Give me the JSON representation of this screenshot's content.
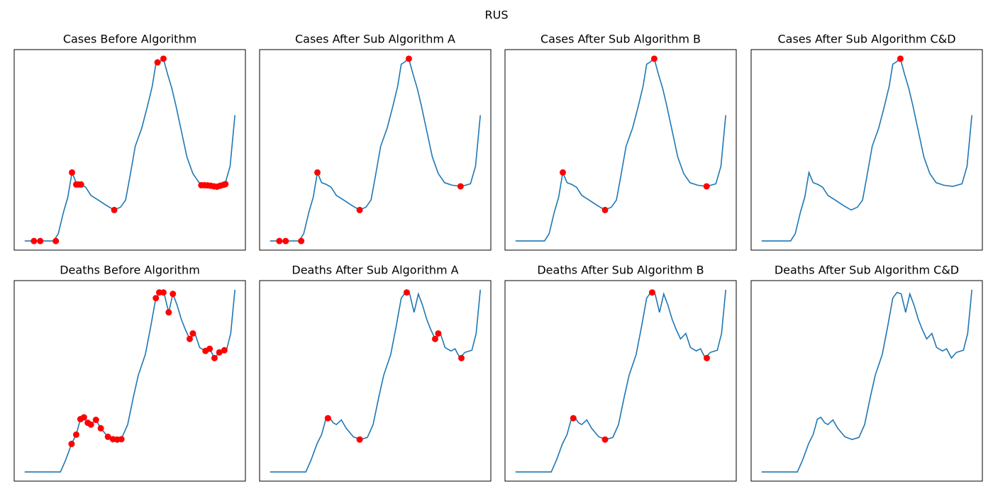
{
  "title": "RUS",
  "chart_data": [
    {
      "type": "line",
      "title": "Cases Before Algorithm",
      "xlim": [
        -5,
        105
      ],
      "ylim": [
        -5,
        105
      ],
      "color": "#1f77b4",
      "x": [
        0,
        13.8,
        16,
        18.5,
        20.5,
        22.5,
        24.5,
        26.8,
        29,
        31.5,
        35,
        39,
        42.6,
        45.6,
        48,
        50,
        52.6,
        55.7,
        58.4,
        60.7,
        62.4,
        63.8,
        66,
        68,
        70,
        72,
        74.5,
        77.2,
        80,
        83,
        86.6,
        91,
        95.3,
        97.7,
        100
      ],
      "values": [
        0,
        0,
        4,
        16,
        24,
        37.6,
        32,
        31,
        29.5,
        25,
        22.5,
        19.4,
        17,
        18.6,
        22.5,
        35,
        52,
        62,
        74,
        85,
        97,
        98,
        100,
        91.5,
        83.7,
        74,
        60.5,
        46,
        37,
        32,
        30.6,
        30,
        31.4,
        41,
        69
      ],
      "markers": {
        "color": "#ff0000",
        "x": [
          4.4,
          7.4,
          14.8,
          22.5,
          24.5,
          25.5,
          26.8,
          42.6,
          63.2,
          66,
          84,
          85.5,
          87,
          88.5,
          90,
          91.5,
          93,
          94.5,
          95.5
        ],
        "values": [
          0,
          0,
          0,
          37.6,
          31,
          31,
          31,
          17,
          98,
          100,
          30.6,
          30.6,
          30.5,
          30.3,
          30,
          29.8,
          30.3,
          30.8,
          31.2
        ]
      }
    },
    {
      "type": "line",
      "title": "Cases After Sub Algorithm A",
      "xlim": [
        -5,
        105
      ],
      "ylim": [
        -5,
        105
      ],
      "color": "#1f77b4",
      "x": [
        0,
        13.8,
        16,
        18.5,
        20.5,
        22.5,
        24.5,
        26.8,
        29,
        31.5,
        35,
        39,
        42.6,
        45.6,
        48,
        50,
        52.6,
        55.7,
        58.4,
        60.7,
        62.4,
        63.8,
        66,
        68,
        70,
        72,
        74.5,
        77.2,
        80,
        83,
        86.6,
        91,
        95.3,
        97.7,
        100
      ],
      "values": [
        0,
        0,
        4,
        16,
        24,
        37.6,
        32,
        31,
        29.5,
        25,
        22.5,
        19.4,
        17,
        18.6,
        22.5,
        35,
        52,
        62,
        74,
        85,
        97,
        98,
        100,
        91.5,
        83.7,
        74,
        60.5,
        46,
        37,
        32,
        30.6,
        30,
        31.4,
        41,
        69
      ],
      "markers": {
        "color": "#ff0000",
        "x": [
          4.4,
          7.4,
          14.8,
          22.5,
          42.6,
          66,
          90.6
        ],
        "values": [
          0,
          0,
          0,
          37.6,
          17,
          100,
          30
        ]
      }
    },
    {
      "type": "line",
      "title": "Cases After Sub Algorithm B",
      "xlim": [
        -5,
        105
      ],
      "ylim": [
        -5,
        105
      ],
      "color": "#1f77b4",
      "x": [
        0,
        13.8,
        16,
        18.5,
        20.5,
        22.5,
        24.5,
        26.8,
        29,
        31.5,
        35,
        39,
        42.6,
        45.6,
        48,
        50,
        52.6,
        55.7,
        58.4,
        60.7,
        62.4,
        63.8,
        66,
        68,
        70,
        72,
        74.5,
        77.2,
        80,
        83,
        86.6,
        91,
        95.3,
        97.7,
        100
      ],
      "values": [
        0,
        0,
        4,
        16,
        24,
        37.6,
        32,
        31,
        29.5,
        25,
        22.5,
        19.4,
        17,
        18.6,
        22.5,
        35,
        52,
        62,
        74,
        85,
        97,
        98,
        100,
        91.5,
        83.7,
        74,
        60.5,
        46,
        37,
        32,
        30.6,
        30,
        31.4,
        41,
        69
      ],
      "markers": {
        "color": "#ff0000",
        "x": [
          22.5,
          42.6,
          66,
          90.9
        ],
        "values": [
          37.6,
          17,
          100,
          30
        ]
      }
    },
    {
      "type": "line",
      "title": "Cases After Sub Algorithm C&D",
      "xlim": [
        -5,
        105
      ],
      "ylim": [
        -5,
        105
      ],
      "color": "#1f77b4",
      "x": [
        0,
        13.8,
        16,
        18.5,
        20.5,
        22.5,
        24.5,
        26.8,
        29,
        31.5,
        35,
        39,
        42.6,
        45.6,
        48,
        50,
        52.6,
        55.7,
        58.4,
        60.7,
        62.4,
        63.8,
        66,
        68,
        70,
        72,
        74.5,
        77.2,
        80,
        83,
        86.6,
        91,
        95.3,
        97.7,
        100
      ],
      "values": [
        0,
        0,
        4,
        16,
        24,
        37.6,
        32,
        31,
        29.5,
        25,
        22.5,
        19.4,
        17,
        18.6,
        22.5,
        35,
        52,
        62,
        74,
        85,
        97,
        98,
        100,
        91.5,
        83.7,
        74,
        60.5,
        46,
        37,
        32,
        30.6,
        30,
        31.4,
        41,
        69
      ],
      "markers": {
        "color": "#ff0000",
        "x": [
          66
        ],
        "values": [
          100
        ]
      }
    },
    {
      "type": "line",
      "title": "Deaths Before Algorithm",
      "xlim": [
        -5,
        105
      ],
      "ylim": [
        -5,
        105
      ],
      "color": "#1f77b4",
      "x": [
        0,
        17,
        19.5,
        22.3,
        24.5,
        26.5,
        28.2,
        30,
        31.5,
        33.9,
        36.2,
        39.6,
        43,
        46.3,
        49,
        51.7,
        54,
        57.4,
        60,
        62.4,
        64.4,
        66.4,
        68.5,
        70.5,
        72.5,
        74.5,
        76.5,
        78.5,
        81,
        83.2,
        86,
        88,
        90.3,
        92.6,
        96,
        98,
        100
      ],
      "values": [
        0,
        0,
        6.6,
        15.4,
        20.5,
        29,
        30,
        27,
        26,
        28.6,
        24,
        19.3,
        17.8,
        19,
        26,
        41,
        53,
        64.5,
        80,
        95.4,
        98.5,
        97.7,
        87.6,
        97.7,
        91.5,
        83.8,
        78,
        73,
        76,
        68.3,
        66.4,
        67.6,
        62.5,
        65.6,
        66.8,
        76,
        100
      ],
      "markers": {
        "color": "#ff0000",
        "x": [
          22.3,
          24.5,
          26.5,
          28.2,
          30,
          31.5,
          33.9,
          36.2,
          39.6,
          42,
          44,
          46,
          62.4,
          64,
          66,
          68.5,
          70.5,
          78.5,
          80,
          86,
          88,
          90.3,
          92.6,
          95
        ],
        "values": [
          15.4,
          20.5,
          29,
          30,
          27,
          26,
          28.6,
          24,
          19.3,
          18,
          17.8,
          18,
          95.4,
          98.5,
          98.5,
          87.6,
          97.7,
          73,
          76,
          66.4,
          67.6,
          62.5,
          65.6,
          66.8
        ]
      }
    },
    {
      "type": "line",
      "title": "Deaths After Sub Algorithm A",
      "xlim": [
        -5,
        105
      ],
      "ylim": [
        -5,
        105
      ],
      "color": "#1f77b4",
      "x": [
        0,
        17,
        19.5,
        22.3,
        24.5,
        26.5,
        28.2,
        30,
        31.5,
        33.9,
        36.2,
        39.6,
        43,
        46.3,
        49,
        51.7,
        54,
        57.4,
        60,
        62.4,
        64.4,
        66.4,
        68.5,
        70.5,
        72.5,
        74.5,
        76.5,
        78.5,
        81,
        83.2,
        86,
        88,
        90.3,
        92.6,
        96,
        98,
        100
      ],
      "values": [
        0,
        0,
        6.6,
        15.4,
        20.5,
        29,
        30,
        27,
        26,
        28.6,
        24,
        19.3,
        17.8,
        19,
        26,
        41,
        53,
        64.5,
        80,
        95.4,
        98.5,
        97.7,
        87.6,
        97.7,
        91.5,
        83.8,
        78,
        73,
        76,
        68.3,
        66.4,
        67.6,
        62.5,
        65.6,
        66.8,
        76,
        100
      ],
      "markers": {
        "color": "#ff0000",
        "x": [
          27.5,
          42.6,
          65,
          78.5,
          80,
          91
        ],
        "values": [
          29.5,
          17.8,
          98.5,
          73,
          76,
          62.5
        ]
      }
    },
    {
      "type": "line",
      "title": "Deaths After Sub Algorithm B",
      "xlim": [
        -5,
        105
      ],
      "ylim": [
        -5,
        105
      ],
      "color": "#1f77b4",
      "x": [
        0,
        17,
        19.5,
        22.3,
        24.5,
        26.5,
        28.2,
        30,
        31.5,
        33.9,
        36.2,
        39.6,
        43,
        46.3,
        49,
        51.7,
        54,
        57.4,
        60,
        62.4,
        64.4,
        66.4,
        68.5,
        70.5,
        72.5,
        74.5,
        76.5,
        78.5,
        81,
        83.2,
        86,
        88,
        90.3,
        92.6,
        96,
        98,
        100
      ],
      "values": [
        0,
        0,
        6.6,
        15.4,
        20.5,
        29,
        30,
        27,
        26,
        28.6,
        24,
        19.3,
        17.8,
        19,
        26,
        41,
        53,
        64.5,
        80,
        95.4,
        98.5,
        97.7,
        87.6,
        97.7,
        91.5,
        83.8,
        78,
        73,
        76,
        68.3,
        66.4,
        67.6,
        62.5,
        65.6,
        66.8,
        76,
        100
      ],
      "markers": {
        "color": "#ff0000",
        "x": [
          27.5,
          42.6,
          65,
          91
        ],
        "values": [
          29.5,
          17.8,
          98.5,
          62.5
        ]
      }
    },
    {
      "type": "line",
      "title": "Deaths After Sub Algorithm C&D",
      "xlim": [
        -5,
        105
      ],
      "ylim": [
        -5,
        105
      ],
      "color": "#1f77b4",
      "x": [
        0,
        17,
        19.5,
        22.3,
        24.5,
        26.5,
        28.2,
        30,
        31.5,
        33.9,
        36.2,
        39.6,
        43,
        46.3,
        49,
        51.7,
        54,
        57.4,
        60,
        62.4,
        64.4,
        66.4,
        68.5,
        70.5,
        72.5,
        74.5,
        76.5,
        78.5,
        81,
        83.2,
        86,
        88,
        90.3,
        92.6,
        96,
        98,
        100
      ],
      "values": [
        0,
        0,
        6.6,
        15.4,
        20.5,
        29,
        30,
        27,
        26,
        28.6,
        24,
        19.3,
        17.8,
        19,
        26,
        41,
        53,
        64.5,
        80,
        95.4,
        98.5,
        97.7,
        87.6,
        97.7,
        91.5,
        83.8,
        78,
        73,
        76,
        68.3,
        66.4,
        67.6,
        62.5,
        65.6,
        66.8,
        76,
        100
      ],
      "markers": {
        "color": "#ff0000",
        "x": [],
        "values": []
      }
    }
  ]
}
